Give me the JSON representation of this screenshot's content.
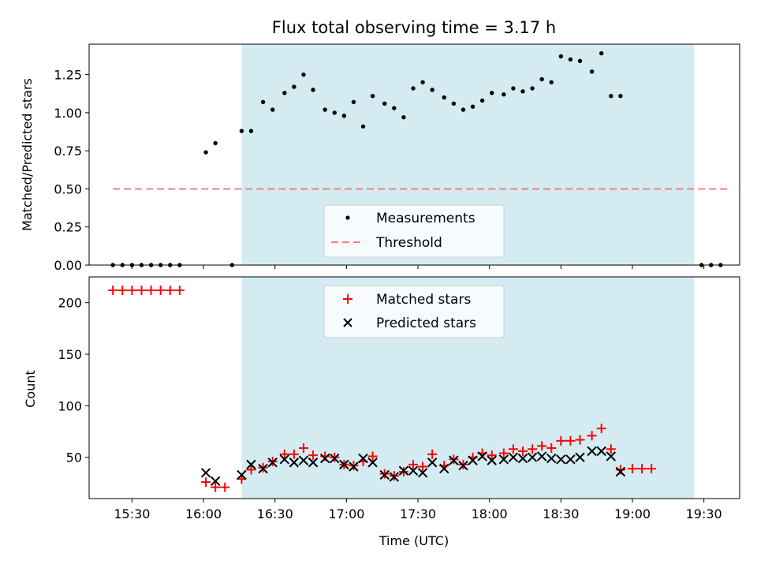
{
  "chart_data": [
    {
      "type": "scatter",
      "title": "Flux total observing time = 3.17 h",
      "ylabel": "Matched/Predicted stars",
      "xlabel": "",
      "ylim": [
        0,
        1.45
      ],
      "yticks": [
        "0.00",
        "0.25",
        "0.50",
        "0.75",
        "1.00",
        "1.25"
      ],
      "grid": false,
      "legend_placement": "lower center",
      "observing_window": {
        "start": "16:16",
        "end": "19:26",
        "color": "#add8e6"
      },
      "threshold": {
        "name": "Threshold",
        "value": 0.5,
        "x_start": "15:22",
        "x_end": "19:40",
        "color": "#f08080"
      },
      "series": [
        {
          "name": "Measurements",
          "color": "#000000",
          "marker": "dot",
          "points": [
            [
              "15:22",
              0
            ],
            [
              "15:26",
              0
            ],
            [
              "15:30",
              0
            ],
            [
              "15:34",
              0
            ],
            [
              "15:38",
              0
            ],
            [
              "15:42",
              0
            ],
            [
              "15:46",
              0
            ],
            [
              "15:50",
              0
            ],
            [
              "16:01",
              0.74
            ],
            [
              "16:05",
              0.8
            ],
            [
              "16:12",
              0
            ],
            [
              "16:16",
              0.88
            ],
            [
              "16:20",
              0.88
            ],
            [
              "16:25",
              1.07
            ],
            [
              "16:29",
              1.02
            ],
            [
              "16:34",
              1.13
            ],
            [
              "16:38",
              1.17
            ],
            [
              "16:42",
              1.25
            ],
            [
              "16:46",
              1.15
            ],
            [
              "16:51",
              1.02
            ],
            [
              "16:55",
              1.0
            ],
            [
              "16:59",
              0.98
            ],
            [
              "17:03",
              1.07
            ],
            [
              "17:07",
              0.91
            ],
            [
              "17:11",
              1.11
            ],
            [
              "17:16",
              1.06
            ],
            [
              "17:20",
              1.03
            ],
            [
              "17:24",
              0.97
            ],
            [
              "17:28",
              1.16
            ],
            [
              "17:32",
              1.2
            ],
            [
              "17:36",
              1.15
            ],
            [
              "17:41",
              1.1
            ],
            [
              "17:45",
              1.06
            ],
            [
              "17:49",
              1.02
            ],
            [
              "17:53",
              1.04
            ],
            [
              "17:57",
              1.08
            ],
            [
              "18:01",
              1.13
            ],
            [
              "18:06",
              1.12
            ],
            [
              "18:10",
              1.16
            ],
            [
              "18:14",
              1.14
            ],
            [
              "18:18",
              1.16
            ],
            [
              "18:22",
              1.22
            ],
            [
              "18:26",
              1.2
            ],
            [
              "18:30",
              1.37
            ],
            [
              "18:34",
              1.35
            ],
            [
              "18:38",
              1.34
            ],
            [
              "18:43",
              1.27
            ],
            [
              "18:47",
              1.39
            ],
            [
              "18:51",
              1.11
            ],
            [
              "18:55",
              1.11
            ],
            [
              "19:29",
              0
            ],
            [
              "19:33",
              0
            ],
            [
              "19:37",
              0
            ]
          ]
        }
      ]
    },
    {
      "type": "scatter",
      "xlabel": "Time (UTC)",
      "ylabel": "Count",
      "ylim": [
        10,
        225
      ],
      "yticks": [
        "50",
        "100",
        "150",
        "200"
      ],
      "xlim": [
        "15:12",
        "19:45"
      ],
      "xticks": [
        "15:30",
        "16:00",
        "16:30",
        "17:00",
        "17:30",
        "18:00",
        "18:30",
        "19:00",
        "19:30"
      ],
      "grid": false,
      "legend_placement": "upper center",
      "observing_window": {
        "start": "16:16",
        "end": "19:26",
        "color": "#add8e6"
      },
      "series": [
        {
          "name": "Matched stars",
          "color": "#ff0000",
          "marker": "plus",
          "points": [
            [
              "15:22",
              212
            ],
            [
              "15:26",
              212
            ],
            [
              "15:30",
              212
            ],
            [
              "15:34",
              212
            ],
            [
              "15:38",
              212
            ],
            [
              "15:42",
              212
            ],
            [
              "15:46",
              212
            ],
            [
              "15:50",
              212
            ],
            [
              "16:01",
              26
            ],
            [
              "16:05",
              21
            ],
            [
              "16:09",
              21
            ],
            [
              "16:16",
              29
            ],
            [
              "16:20",
              38
            ],
            [
              "16:25",
              40
            ],
            [
              "16:29",
              46
            ],
            [
              "16:34",
              53
            ],
            [
              "16:38",
              53
            ],
            [
              "16:42",
              59
            ],
            [
              "16:46",
              52
            ],
            [
              "16:51",
              51
            ],
            [
              "16:55",
              50
            ],
            [
              "16:59",
              43
            ],
            [
              "17:03",
              42
            ],
            [
              "17:07",
              46
            ],
            [
              "17:11",
              51
            ],
            [
              "17:16",
              34
            ],
            [
              "17:20",
              32
            ],
            [
              "17:24",
              36
            ],
            [
              "17:28",
              43
            ],
            [
              "17:32",
              41
            ],
            [
              "17:36",
              53
            ],
            [
              "17:41",
              42
            ],
            [
              "17:45",
              48
            ],
            [
              "17:49",
              43
            ],
            [
              "17:53",
              50
            ],
            [
              "17:57",
              54
            ],
            [
              "18:01",
              52
            ],
            [
              "18:06",
              54
            ],
            [
              "18:10",
              58
            ],
            [
              "18:14",
              56
            ],
            [
              "18:18",
              58
            ],
            [
              "18:22",
              61
            ],
            [
              "18:26",
              59
            ],
            [
              "18:30",
              66
            ],
            [
              "18:34",
              66
            ],
            [
              "18:38",
              67
            ],
            [
              "18:43",
              71
            ],
            [
              "18:47",
              78
            ],
            [
              "18:51",
              58
            ],
            [
              "18:55",
              38
            ],
            [
              "19:00",
              39
            ],
            [
              "19:04",
              39
            ],
            [
              "19:08",
              39
            ]
          ]
        },
        {
          "name": "Predicted stars",
          "color": "#000000",
          "marker": "x",
          "points": [
            [
              "16:01",
              35
            ],
            [
              "16:05",
              27
            ],
            [
              "16:16",
              33
            ],
            [
              "16:20",
              43
            ],
            [
              "16:25",
              39
            ],
            [
              "16:29",
              45
            ],
            [
              "16:34",
              48
            ],
            [
              "16:38",
              45
            ],
            [
              "16:42",
              47
            ],
            [
              "16:46",
              45
            ],
            [
              "16:51",
              49
            ],
            [
              "16:55",
              49
            ],
            [
              "16:59",
              43
            ],
            [
              "17:03",
              41
            ],
            [
              "17:07",
              49
            ],
            [
              "17:11",
              45
            ],
            [
              "17:16",
              33
            ],
            [
              "17:20",
              31
            ],
            [
              "17:24",
              37
            ],
            [
              "17:28",
              37
            ],
            [
              "17:32",
              35
            ],
            [
              "17:36",
              45
            ],
            [
              "17:41",
              39
            ],
            [
              "17:45",
              47
            ],
            [
              "17:49",
              42
            ],
            [
              "17:53",
              47
            ],
            [
              "17:57",
              51
            ],
            [
              "18:01",
              47
            ],
            [
              "18:06",
              48
            ],
            [
              "18:10",
              50
            ],
            [
              "18:14",
              49
            ],
            [
              "18:18",
              50
            ],
            [
              "18:22",
              51
            ],
            [
              "18:26",
              49
            ],
            [
              "18:30",
              48
            ],
            [
              "18:34",
              48
            ],
            [
              "18:38",
              50
            ],
            [
              "18:43",
              56
            ],
            [
              "18:47",
              56
            ],
            [
              "18:51",
              51
            ],
            [
              "18:55",
              36
            ]
          ]
        }
      ]
    }
  ]
}
